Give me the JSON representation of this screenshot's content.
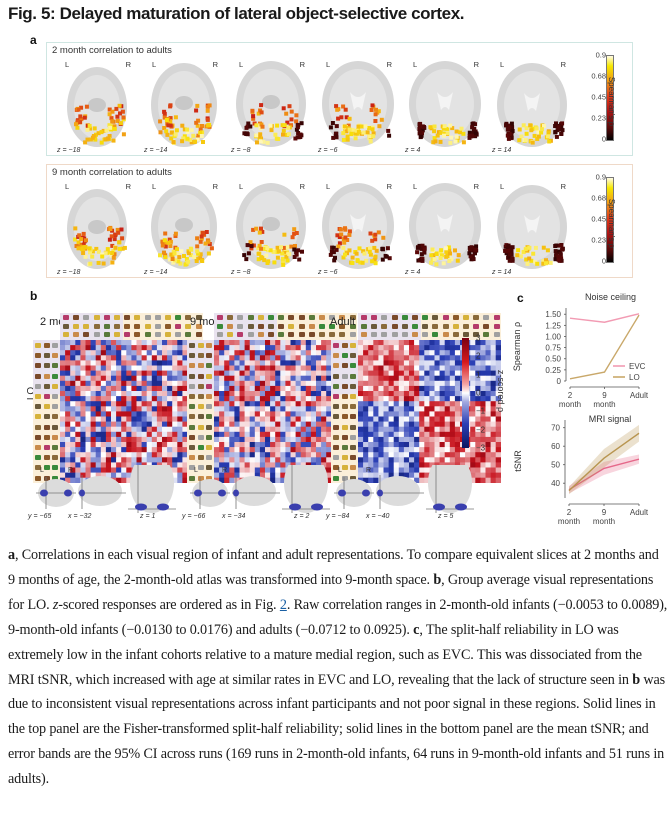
{
  "figure": {
    "title": "Fig. 5: Delayed maturation of lateral object-selective cortex.",
    "panel_letters": {
      "a": "a",
      "b": "b",
      "c": "c"
    }
  },
  "panel_a": {
    "rows": [
      {
        "title": "2 month correlation to adults",
        "theme": "teal",
        "slices": [
          {
            "z": "z = −18",
            "L": "L",
            "R": "R"
          },
          {
            "z": "z = −14",
            "L": "L",
            "R": "R"
          },
          {
            "z": "z = −8",
            "L": "L",
            "R": "R"
          },
          {
            "z": "z = −6",
            "L": "L",
            "R": "R"
          },
          {
            "z": "z = 4",
            "L": "L",
            "R": "R"
          },
          {
            "z": "z = 14",
            "L": "L",
            "R": "R"
          }
        ]
      },
      {
        "title": "9 month correlation to adults",
        "theme": "peach",
        "slices": [
          {
            "z": "z = −18",
            "L": "L",
            "R": "R"
          },
          {
            "z": "z = −14",
            "L": "L",
            "R": "R"
          },
          {
            "z": "z = −8",
            "L": "L",
            "R": "R"
          },
          {
            "z": "z = −6",
            "L": "L",
            "R": "R"
          },
          {
            "z": "z = 4",
            "L": "L",
            "R": "R"
          },
          {
            "z": "z = 14",
            "L": "L",
            "R": "R"
          }
        ]
      }
    ],
    "colorbar": {
      "title": "Spearman’s ρ",
      "ticks": [
        "0.9",
        "0.68",
        "0.45",
        "0.23",
        "0"
      ],
      "tick_values": [
        0.9,
        0.68,
        0.45,
        0.23,
        0
      ]
    }
  },
  "panel_b": {
    "region_label": "LO",
    "matrices": [
      {
        "label": "2 mo",
        "structure": 0.05,
        "seed": 11,
        "locators": {
          "y": "y = −65",
          "x": "x = −32",
          "z": "z = 1",
          "L": "L",
          "R": "R"
        }
      },
      {
        "label": "9 mo",
        "structure": 0.18,
        "seed": 29,
        "locators": {
          "y": "y = −66",
          "x": "x = −34",
          "z": "z = 2",
          "L": "L",
          "R": "R"
        }
      },
      {
        "label": "Adult",
        "structure": 0.9,
        "seed": 53,
        "locators": {
          "y": "y = −84",
          "x": "x = −40",
          "z": "z = 5",
          "L": "L",
          "R": "R"
        }
      }
    ],
    "colorbar": {
      "title": "z-scored ρ",
      "ticks": [
        "3",
        "2",
        "1",
        "0",
        "−1",
        "−2",
        "−3"
      ],
      "tick_values": [
        3,
        2,
        1,
        0,
        -1,
        -2,
        -3
      ]
    }
  },
  "chart_data": [
    {
      "type": "line",
      "title": "Noise ceiling",
      "xlabel": "",
      "ylabel": "Spearman ρ",
      "categories": [
        "2\nmonth",
        "9\nmonth",
        "Adult"
      ],
      "yticks": [
        "0",
        "0.25",
        "0.50",
        "0.75",
        "1.00",
        "1.25",
        "1.50"
      ],
      "ylim": [
        0,
        1.55
      ],
      "legend": "bottom-right",
      "series": [
        {
          "name": "EVC",
          "color": "#f29bb3",
          "values": [
            1.41,
            1.32,
            1.51
          ]
        },
        {
          "name": "LO",
          "color": "#c9a86a",
          "values": [
            0.05,
            0.2,
            1.48
          ]
        }
      ]
    },
    {
      "type": "line",
      "title": "MRI signal",
      "xlabel": "",
      "ylabel": "tSNR",
      "categories": [
        "2\nmonth",
        "9\nmonth",
        "Adult"
      ],
      "yticks": [
        "40",
        "50",
        "60",
        "70"
      ],
      "ylim": [
        32,
        72
      ],
      "grid": false,
      "series": [
        {
          "name": "EVC",
          "color": "#e5688a",
          "values": [
            36.5,
            48,
            53
          ],
          "ci_low": [
            34.5,
            44.5,
            50.5
          ],
          "ci_high": [
            38.5,
            51.5,
            55.5
          ]
        },
        {
          "name": "LO",
          "color": "#b89550",
          "values": [
            36,
            53.5,
            67
          ],
          "ci_low": [
            34,
            48.5,
            62.5
          ],
          "ci_high": [
            38,
            58.5,
            71.5
          ]
        }
      ]
    }
  ],
  "caption": {
    "segments": [
      {
        "t": "a",
        "b": true
      },
      {
        "t": ", Correlations in each visual region of infant and adult representations. To compare equivalent slices at 2 months and 9 months of age, the 2-month-old atlas was transformed into 9-month space. "
      },
      {
        "t": "b",
        "b": true
      },
      {
        "t": ", Group average visual representations for LO. "
      },
      {
        "t": "z",
        "i": true
      },
      {
        "t": "-scored responses are ordered as in Fig. "
      },
      {
        "t": "2",
        "link": true
      },
      {
        "t": ". Raw correlation ranges in 2-month-old infants (−0.0053 to 0.0089), 9-month-old infants (−0.0130 to 0.0176) and adults (−0.0712 to 0.0925). "
      },
      {
        "t": "c",
        "b": true
      },
      {
        "t": ", The split-half reliability in LO was extremely low in the infant cohorts relative to a mature medial region, such as EVC. This was dissociated from the MRI tSNR, which increased with age at similar rates in EVC and LO, revealing that the lack of structure seen in "
      },
      {
        "t": "b",
        "b": true
      },
      {
        "t": " was due to inconsistent visual representations across infant participants and not poor signal in these regions. Solid lines in the top panel are the Fisher-transformed split-half reliability; solid lines in the bottom panel are the mean tSNR; and error bands are the 95% CI across runs (169 runs in 2-month-old infants, 64 runs in 9-month-old infants and 51 runs in adults)."
      }
    ]
  }
}
